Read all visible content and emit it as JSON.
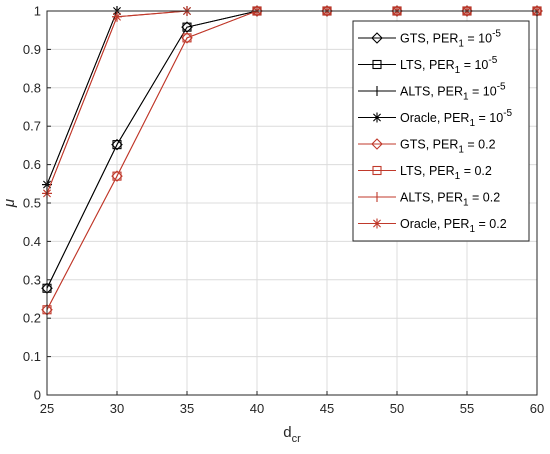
{
  "chart_data": {
    "type": "line",
    "title": "",
    "xlabel": {
      "main": "d",
      "sub": "cr"
    },
    "ylabel": "μ",
    "xlim": [
      25,
      60
    ],
    "ylim": [
      0,
      1
    ],
    "xticks": [
      25,
      30,
      35,
      40,
      45,
      50,
      55,
      60
    ],
    "yticks": [
      0,
      0.1,
      0.2,
      0.3,
      0.4,
      0.5,
      0.6,
      0.7,
      0.8,
      0.9,
      1
    ],
    "grid": true,
    "legend_position": "top-right",
    "x": [
      25,
      30,
      35,
      40,
      45,
      50,
      55,
      60
    ],
    "series": [
      {
        "name": {
          "pre": "GTS, PER",
          "sub": "1",
          "mid": " = 10",
          "sup": "-5"
        },
        "color": "#000000",
        "marker": "diamond",
        "values": [
          0.278,
          0.652,
          0.958,
          1,
          1,
          1,
          1,
          1
        ]
      },
      {
        "name": {
          "pre": "LTS, PER",
          "sub": "1",
          "mid": " = 10",
          "sup": "-5"
        },
        "color": "#000000",
        "marker": "square",
        "values": [
          0.278,
          0.652,
          0.958,
          1,
          1,
          1,
          1,
          1
        ]
      },
      {
        "name": {
          "pre": "ALTS, PER",
          "sub": "1",
          "mid": " = 10",
          "sup": "-5"
        },
        "color": "#000000",
        "marker": "plus",
        "values": [
          0.548,
          1,
          1,
          1,
          1,
          1,
          1,
          1
        ]
      },
      {
        "name": {
          "pre": "Oracle, PER",
          "sub": "1",
          "mid": " = 10",
          "sup": "-5"
        },
        "color": "#000000",
        "marker": "asterisk",
        "values": [
          0.548,
          1,
          1,
          1,
          1,
          1,
          1,
          1
        ]
      },
      {
        "name": {
          "pre": "GTS, PER",
          "sub": "1",
          "mid": " = 0.2",
          "sup": ""
        },
        "color": "#c0392b",
        "marker": "diamond",
        "values": [
          0.222,
          0.57,
          0.93,
          1,
          1,
          1,
          1,
          1
        ]
      },
      {
        "name": {
          "pre": "LTS, PER",
          "sub": "1",
          "mid": " = 0.2",
          "sup": ""
        },
        "color": "#c0392b",
        "marker": "square",
        "values": [
          0.222,
          0.57,
          0.93,
          1,
          1,
          1,
          1,
          1
        ]
      },
      {
        "name": {
          "pre": "ALTS, PER",
          "sub": "1",
          "mid": " = 0.2",
          "sup": ""
        },
        "color": "#c0392b",
        "marker": "plus",
        "values": [
          0.525,
          0.985,
          1,
          1,
          1,
          1,
          1,
          1
        ]
      },
      {
        "name": {
          "pre": "Oracle, PER",
          "sub": "1",
          "mid": " = 0.2",
          "sup": ""
        },
        "color": "#c0392b",
        "marker": "asterisk",
        "values": [
          0.525,
          0.985,
          1,
          1,
          1,
          1,
          1,
          1
        ]
      }
    ]
  }
}
